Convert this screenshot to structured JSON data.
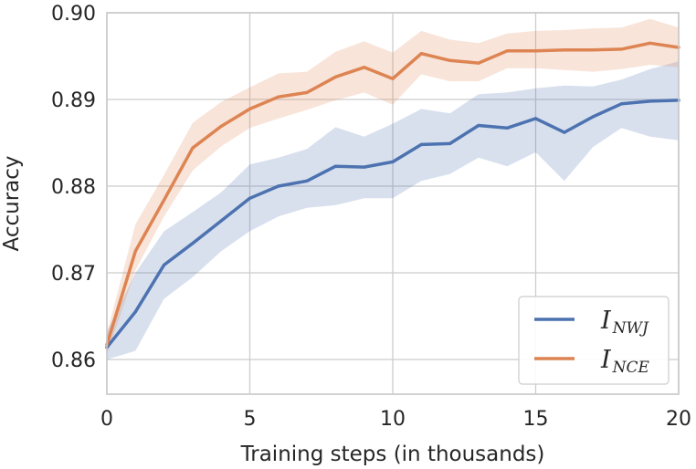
{
  "chart_data": {
    "type": "line",
    "title": "",
    "xlabel": "Training steps (in thousands)",
    "ylabel": "Accuracy",
    "xlim": [
      0,
      20
    ],
    "ylim": [
      0.856,
      0.9
    ],
    "xticks": [
      0,
      5,
      10,
      15,
      20
    ],
    "xtick_labels": [
      "0",
      "5",
      "10",
      "15",
      "20"
    ],
    "yticks": [
      0.86,
      0.87,
      0.88,
      0.89,
      0.9
    ],
    "ytick_labels": [
      "0.86",
      "0.87",
      "0.88",
      "0.89",
      "0.90"
    ],
    "grid": true,
    "legend_position": "lower-right",
    "x": [
      0,
      1,
      2,
      3,
      4,
      5,
      6,
      7,
      8,
      9,
      10,
      11,
      12,
      13,
      14,
      15,
      16,
      17,
      18,
      19,
      20
    ],
    "series": [
      {
        "name": "I_NWJ",
        "label_main": "I",
        "label_sub": "NWJ",
        "color": "#4c72b0",
        "values": [
          0.8614,
          0.8655,
          0.8709,
          0.8734,
          0.876,
          0.8786,
          0.88,
          0.8806,
          0.8823,
          0.8822,
          0.8828,
          0.8848,
          0.8849,
          0.887,
          0.8867,
          0.8878,
          0.8862,
          0.888,
          0.8895,
          0.8898,
          0.8899
        ],
        "lower": [
          0.86,
          0.861,
          0.867,
          0.8695,
          0.8725,
          0.8748,
          0.8765,
          0.8775,
          0.8778,
          0.8786,
          0.8786,
          0.8806,
          0.8814,
          0.8833,
          0.8823,
          0.8839,
          0.8806,
          0.8845,
          0.8867,
          0.8857,
          0.8853
        ],
        "upper": [
          0.8632,
          0.87,
          0.8748,
          0.877,
          0.8793,
          0.8825,
          0.8833,
          0.8843,
          0.8868,
          0.8857,
          0.8872,
          0.8889,
          0.8884,
          0.8906,
          0.8908,
          0.8913,
          0.8916,
          0.8915,
          0.8923,
          0.8935,
          0.8944
        ]
      },
      {
        "name": "I_NCE",
        "label_main": "I",
        "label_sub": "NCE",
        "color": "#dd8452",
        "values": [
          0.8617,
          0.8725,
          0.8784,
          0.8844,
          0.8869,
          0.8889,
          0.8903,
          0.8908,
          0.8926,
          0.8937,
          0.8924,
          0.8953,
          0.8945,
          0.8942,
          0.8956,
          0.8956,
          0.8957,
          0.8957,
          0.8958,
          0.8965,
          0.896
        ],
        "lower": [
          0.8605,
          0.8703,
          0.8765,
          0.8818,
          0.8846,
          0.8867,
          0.8878,
          0.8888,
          0.8899,
          0.8908,
          0.8894,
          0.8929,
          0.8921,
          0.8921,
          0.8936,
          0.8936,
          0.8934,
          0.8932,
          0.8935,
          0.894,
          0.8937
        ],
        "upper": [
          0.863,
          0.8756,
          0.8813,
          0.8873,
          0.8897,
          0.8914,
          0.893,
          0.8932,
          0.8955,
          0.8967,
          0.8954,
          0.8979,
          0.8969,
          0.8965,
          0.8976,
          0.8979,
          0.898,
          0.8982,
          0.8983,
          0.8993,
          0.8983
        ]
      }
    ]
  }
}
